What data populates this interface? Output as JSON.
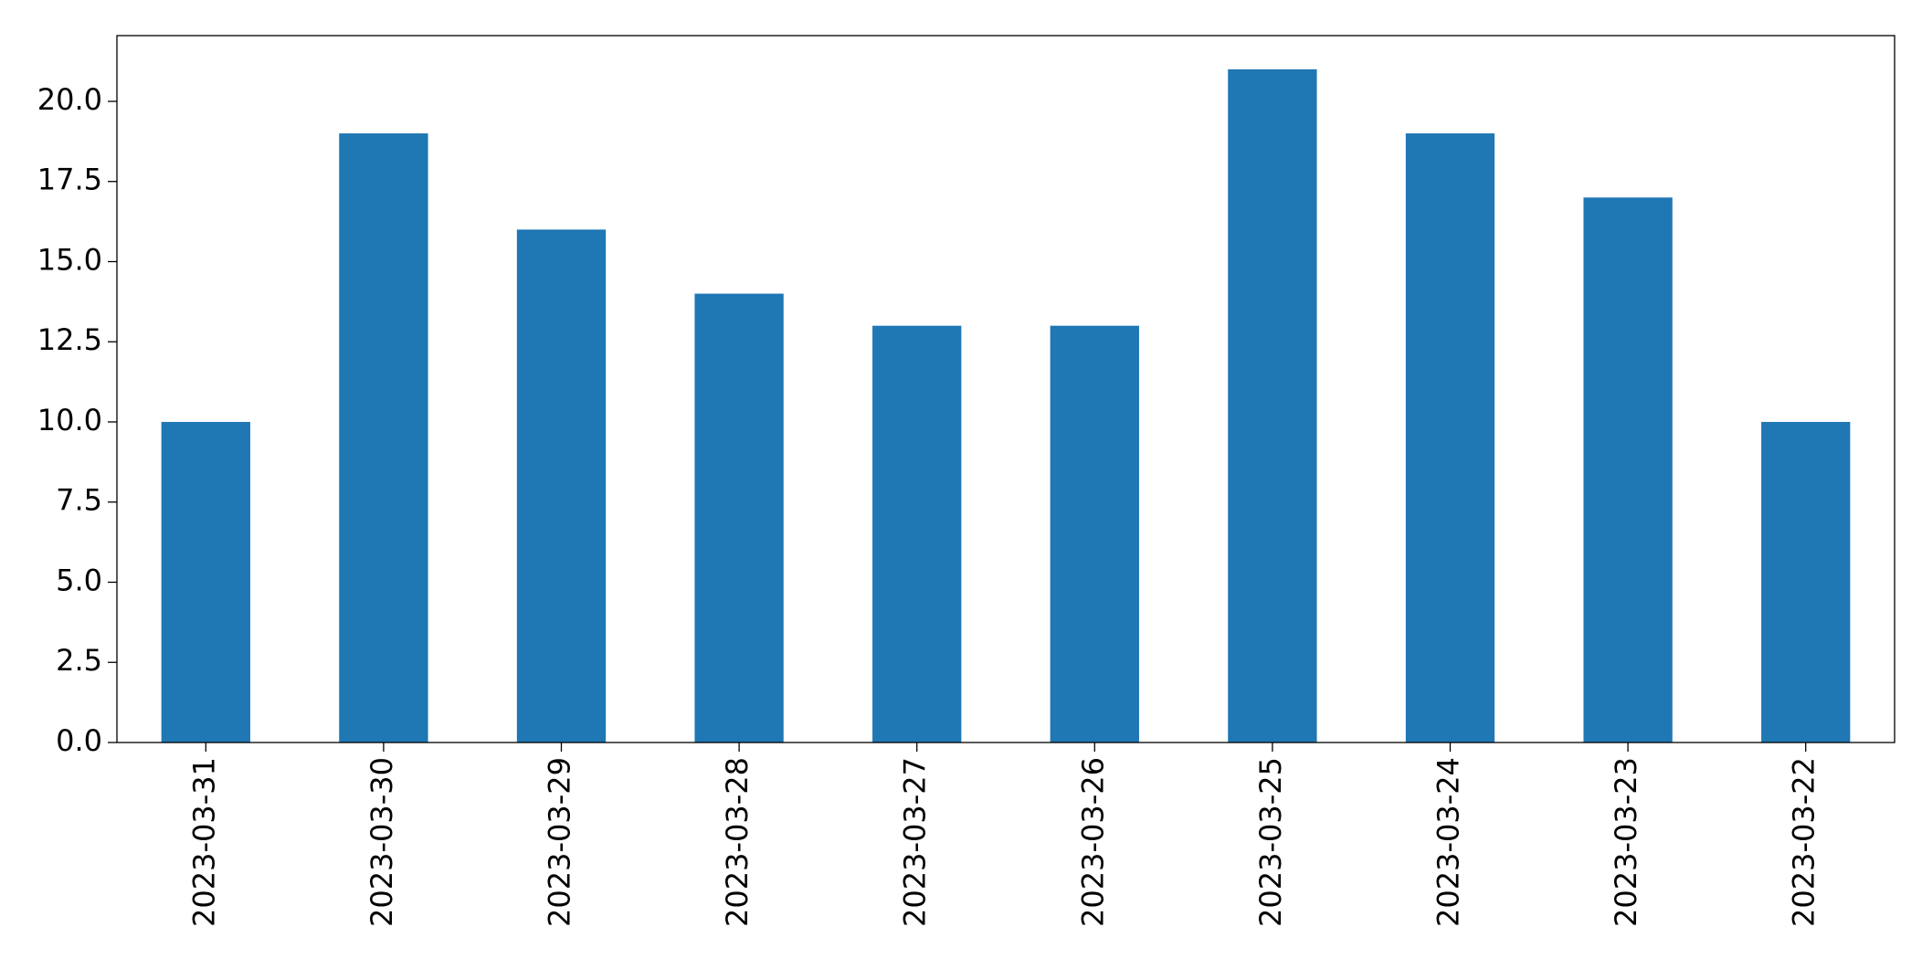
{
  "chart_data": {
    "type": "bar",
    "categories": [
      "2023-03-31",
      "2023-03-30",
      "2023-03-29",
      "2023-03-28",
      "2023-03-27",
      "2023-03-26",
      "2023-03-25",
      "2023-03-24",
      "2023-03-23",
      "2023-03-22"
    ],
    "values": [
      10,
      19,
      16,
      14,
      13,
      13,
      21,
      19,
      17,
      10
    ],
    "color": "#1f77b4",
    "ylim": [
      0,
      22.05
    ],
    "yticks": [
      {
        "value": 0,
        "label": "0.0"
      },
      2.5,
      {
        "value": 5,
        "label": "5.0"
      },
      7.5,
      {
        "value": 10,
        "label": "10.0"
      },
      12.5,
      {
        "value": 15,
        "label": "15.0"
      },
      17.5,
      {
        "value": 20,
        "label": "20.0"
      }
    ],
    "grid": false
  }
}
